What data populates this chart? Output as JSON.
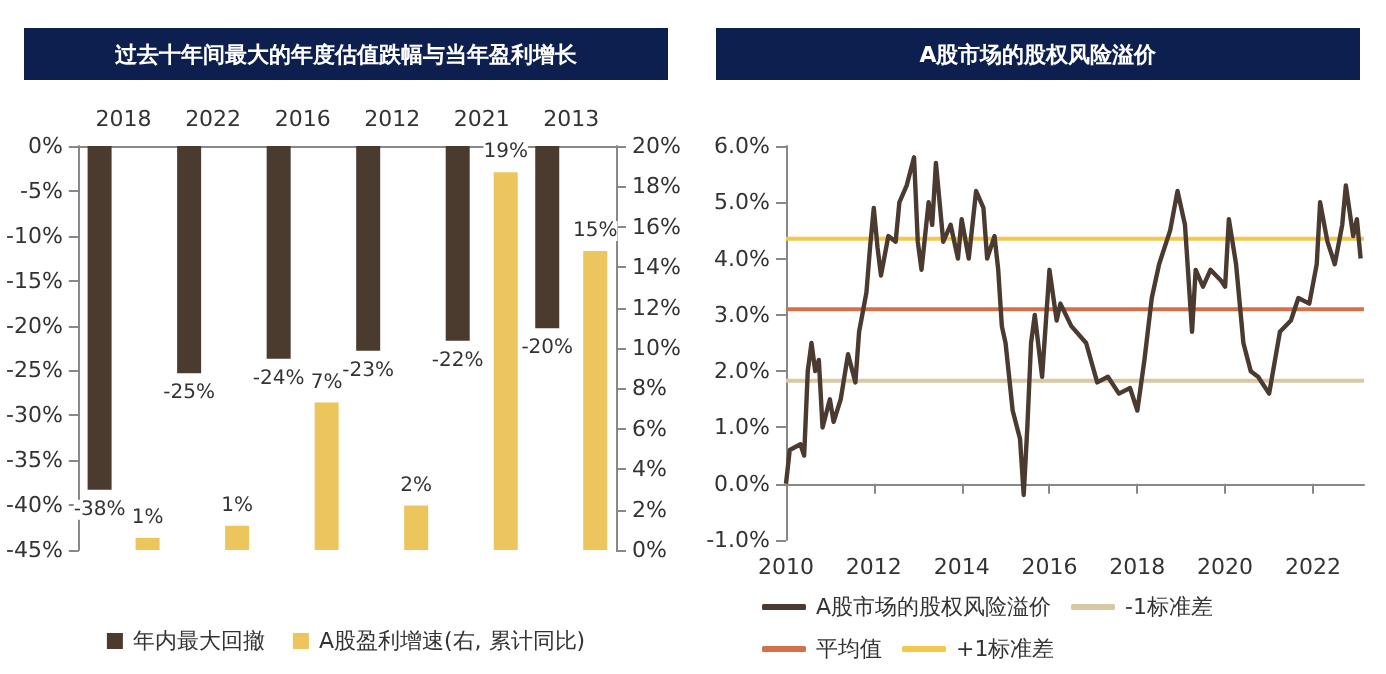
{
  "chart_data": [
    {
      "type": "bar",
      "title": "过去十年间最大的年度估值跌幅与当年盈利增长",
      "categories": [
        "2018",
        "2022",
        "2016",
        "2012",
        "2021",
        "2013"
      ],
      "series": [
        {
          "name": "年内最大回撤",
          "color": "#4b3a2e",
          "values": [
            -38.3,
            -25.3,
            -23.7,
            -22.8,
            -21.7,
            -20.3
          ],
          "value_labels": [
            "-38%",
            "-25%",
            "-24%",
            "-23%",
            "-22%",
            "-20%"
          ]
        },
        {
          "name": "A股盈利增速(右, 累计同比)",
          "color": "#ecc55c",
          "axis": "y2",
          "values": [
            0.6,
            1.2,
            7.3,
            2.2,
            18.7,
            14.8
          ],
          "value_labels": [
            "1%",
            "1%",
            "7%",
            "2%",
            "19%",
            "15%"
          ]
        }
      ],
      "ylim": [
        -45,
        0
      ],
      "yticks": [
        {
          "value": -45,
          "label": "-45%"
        },
        {
          "value": -40,
          "label": "-40%"
        },
        {
          "value": -35,
          "label": "-35%"
        },
        {
          "value": -30,
          "label": "-30%"
        },
        {
          "value": -25,
          "label": "-25%"
        },
        {
          "value": -20,
          "label": "-20%"
        },
        {
          "value": -15,
          "label": "-15%"
        },
        {
          "value": -10,
          "label": "-10%"
        },
        {
          "value": -5,
          "label": "-5%"
        },
        {
          "value": 0,
          "label": "0%"
        }
      ],
      "y2lim": [
        0,
        20
      ],
      "y2ticks": [
        {
          "value": 0,
          "label": "0%"
        },
        {
          "value": 2,
          "label": "2%"
        },
        {
          "value": 4,
          "label": "4%"
        },
        {
          "value": 6,
          "label": "6%"
        },
        {
          "value": 8,
          "label": "8%"
        },
        {
          "value": 10,
          "label": "10%"
        },
        {
          "value": 12,
          "label": "12%"
        },
        {
          "value": 14,
          "label": "14%"
        },
        {
          "value": 16,
          "label": "16%"
        },
        {
          "value": 18,
          "label": "18%"
        },
        {
          "value": 20,
          "label": "20%"
        }
      ],
      "legend": "bottom"
    },
    {
      "type": "line",
      "title": "A股市场的股权风险溢价",
      "series": [
        {
          "name": "A股市场的股权风险溢价",
          "color": "#4a3a30",
          "x": [
            "2010-01",
            "2010-02",
            "2010-05",
            "2010-06",
            "2010-07",
            "2010-08",
            "2010-09",
            "2010-10",
            "2010-11",
            "2011-01",
            "2011-02",
            "2011-04",
            "2011-06",
            "2011-08",
            "2011-09",
            "2011-11",
            "2011-12",
            "2012-01",
            "2012-02",
            "2012-03",
            "2012-05",
            "2012-07",
            "2012-08",
            "2012-10",
            "2012-12",
            "2013-01",
            "2013-02",
            "2013-04",
            "2013-05",
            "2013-06",
            "2013-08",
            "2013-10",
            "2013-12",
            "2014-01",
            "2014-03",
            "2014-05",
            "2014-07",
            "2014-08",
            "2014-10",
            "2014-11",
            "2014-12",
            "2015-01",
            "2015-03",
            "2015-05",
            "2015-06",
            "2015-07",
            "2015-08",
            "2015-09",
            "2015-11",
            "2016-01",
            "2016-03",
            "2016-04",
            "2016-07",
            "2016-11",
            "2017-02",
            "2017-05",
            "2017-08",
            "2017-11",
            "2018-01",
            "2018-03",
            "2018-05",
            "2018-07",
            "2018-10",
            "2018-12",
            "2019-02",
            "2019-04",
            "2019-05",
            "2019-07",
            "2019-09",
            "2019-12",
            "2020-01",
            "2020-02",
            "2020-04",
            "2020-06",
            "2020-08",
            "2020-10",
            "2021-01",
            "2021-04",
            "2021-07",
            "2021-09",
            "2021-12",
            "2022-02",
            "2022-03",
            "2022-05",
            "2022-07",
            "2022-09",
            "2022-10",
            "2022-12",
            "2023-01",
            "2023-02"
          ],
          "values": [
            0.0,
            0.6,
            0.7,
            0.5,
            2.0,
            2.5,
            2.0,
            2.2,
            1.0,
            1.5,
            1.1,
            1.5,
            2.3,
            1.8,
            2.7,
            3.4,
            4.2,
            4.9,
            4.2,
            3.7,
            4.4,
            4.3,
            5.0,
            5.3,
            5.8,
            4.3,
            3.8,
            5.0,
            4.6,
            5.7,
            4.3,
            4.6,
            4.0,
            4.7,
            4.0,
            5.2,
            4.9,
            4.0,
            4.4,
            3.8,
            2.8,
            2.5,
            1.3,
            0.8,
            -0.2,
            1.0,
            2.5,
            3.0,
            1.9,
            3.8,
            2.9,
            3.2,
            2.8,
            2.5,
            1.8,
            1.9,
            1.6,
            1.7,
            1.3,
            2.2,
            3.3,
            3.9,
            4.5,
            5.2,
            4.6,
            2.7,
            3.8,
            3.5,
            3.8,
            3.6,
            3.5,
            4.7,
            3.9,
            2.5,
            2.0,
            1.9,
            1.6,
            2.7,
            2.9,
            3.3,
            3.2,
            3.9,
            5.0,
            4.3,
            3.9,
            4.6,
            5.3,
            4.4,
            4.7,
            4.0
          ]
        }
      ],
      "ref_lines": [
        {
          "axis": "y",
          "value": 1.83,
          "label": "-1标准差",
          "color": "#d8c8a4"
        },
        {
          "axis": "y",
          "value": 3.1,
          "label": "平均值",
          "color": "#d4704a"
        },
        {
          "axis": "y",
          "value": 4.35,
          "label": "+1标准差",
          "color": "#f3c84b"
        }
      ],
      "xlim": [
        "2010-01",
        "2023-03"
      ],
      "xticks": [
        "2010",
        "2012",
        "2014",
        "2016",
        "2018",
        "2020",
        "2022"
      ],
      "ylim": [
        -1,
        6
      ],
      "yticks": [
        {
          "value": -1,
          "label": "-1.0%"
        },
        {
          "value": 0,
          "label": "0.0%"
        },
        {
          "value": 1,
          "label": "1.0%"
        },
        {
          "value": 2,
          "label": "2.0%"
        },
        {
          "value": 3,
          "label": "3.0%"
        },
        {
          "value": 4,
          "label": "4.0%"
        },
        {
          "value": 5,
          "label": "5.0%"
        },
        {
          "value": 6,
          "label": "6.0%"
        }
      ],
      "marker": "none",
      "line_style": "solid",
      "legend": "bottom"
    }
  ]
}
